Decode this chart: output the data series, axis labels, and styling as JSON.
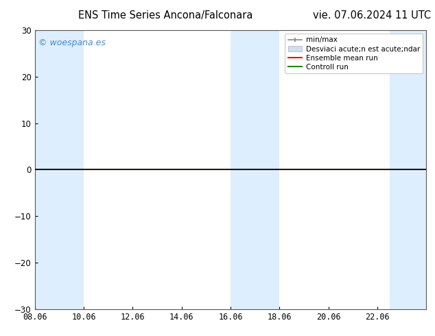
{
  "title_left": "ENS Time Series Ancona/Falconara",
  "title_right": "vie. 07.06.2024 11 UTC",
  "ylim": [
    -30,
    30
  ],
  "yticks": [
    -30,
    -20,
    -10,
    0,
    10,
    20,
    30
  ],
  "xlim": [
    0,
    16
  ],
  "xtick_labels": [
    "08.06",
    "10.06",
    "12.06",
    "14.06",
    "16.06",
    "18.06",
    "20.06",
    "22.06"
  ],
  "xtick_positions": [
    0,
    2,
    4,
    6,
    8,
    10,
    12,
    14
  ],
  "blue_bands": [
    [
      0.0,
      1.0
    ],
    [
      1.0,
      2.0
    ],
    [
      8.0,
      9.0
    ],
    [
      9.0,
      10.0
    ],
    [
      14.5,
      16.0
    ]
  ],
  "band_color": "#ddeeff",
  "watermark_text": "© woespana.es",
  "watermark_color": "#4488cc",
  "legend_label_minmax": "min/max",
  "legend_label_std": "Desviaci acute;n est acute;ndar",
  "legend_label_ensemble": "Ensemble mean run",
  "legend_label_control": "Controll run",
  "minmax_color": "#888888",
  "std_color": "#cce0f0",
  "ensemble_mean_color": "#ff0000",
  "control_run_color": "#228800",
  "zero_line_color": "#000000",
  "background_color": "#ffffff",
  "figsize": [
    6.34,
    4.9
  ],
  "dpi": 100,
  "title_fontsize": 10.5,
  "tick_fontsize": 8.5,
  "legend_fontsize": 7.5,
  "watermark_fontsize": 9
}
